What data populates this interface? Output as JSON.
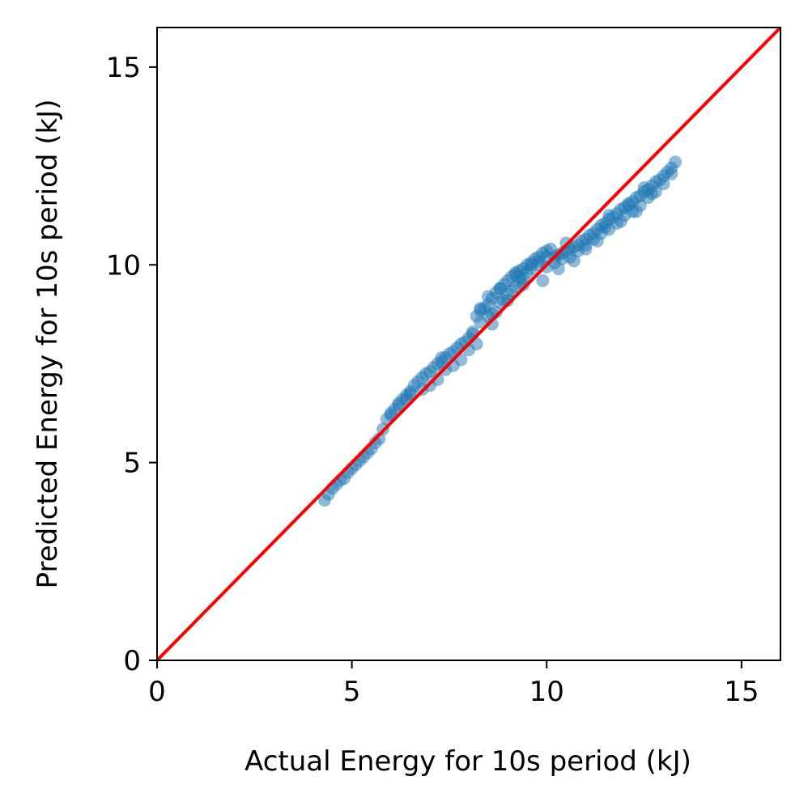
{
  "chart_data": {
    "type": "scatter",
    "title": "",
    "xlabel": "Actual Energy for 10s period (kJ)",
    "ylabel": "Predicted Energy for 10s period (kJ)",
    "xlim": [
      0,
      16
    ],
    "ylim": [
      0,
      16
    ],
    "xticks": [
      0,
      5,
      10,
      15
    ],
    "yticks": [
      0,
      5,
      10,
      15
    ],
    "xtick_labels": [
      "0",
      "5",
      "10",
      "15"
    ],
    "ytick_labels": [
      "0",
      "5",
      "10",
      "15"
    ],
    "grid": false,
    "colors": {
      "points": "#1f77b4",
      "reference_line": "#ff0000",
      "axes": "#000000"
    },
    "reference_line": {
      "name": "y = x",
      "x": [
        0,
        16
      ],
      "y": [
        0,
        16
      ]
    },
    "series": [
      {
        "name": "predictions",
        "x": [
          4.3,
          4.4,
          4.5,
          4.6,
          4.7,
          4.8,
          4.9,
          5.0,
          5.1,
          5.2,
          5.3,
          5.4,
          5.5,
          5.6,
          5.7,
          5.8,
          5.9,
          6.0,
          6.1,
          6.2,
          6.3,
          6.4,
          6.5,
          6.6,
          6.7,
          6.8,
          6.9,
          7.0,
          7.1,
          7.2,
          7.3,
          7.4,
          7.5,
          7.6,
          7.7,
          7.8,
          7.9,
          8.0,
          8.1,
          8.2,
          8.3,
          8.4,
          8.5,
          8.6,
          8.7,
          8.8,
          8.9,
          9.0,
          9.1,
          9.2,
          9.3,
          9.4,
          9.5,
          9.6,
          9.7,
          9.8,
          9.9,
          10.0,
          10.1,
          10.2,
          10.3,
          10.4,
          10.5,
          10.6,
          10.7,
          10.8,
          10.9,
          11.0,
          11.1,
          11.2,
          11.3,
          11.4,
          11.5,
          11.6,
          11.7,
          11.8,
          11.9,
          12.0,
          12.1,
          12.2,
          12.3,
          12.4,
          12.5,
          12.6,
          12.7,
          12.8,
          12.9,
          13.0,
          13.1,
          13.2,
          13.3,
          6.0,
          6.2,
          6.4,
          6.8,
          7.0,
          7.2,
          7.4,
          7.6,
          7.8,
          8.0,
          8.2,
          8.3,
          8.5,
          8.6,
          8.7,
          8.8,
          8.9,
          9.0,
          9.1,
          9.2,
          9.3,
          9.4,
          9.5,
          9.6,
          9.8,
          10.0,
          10.2,
          10.4,
          10.6,
          10.8,
          11.0,
          11.2,
          11.4,
          11.6,
          11.8,
          12.0,
          12.2,
          12.4,
          12.6,
          12.8,
          13.0,
          8.3,
          8.5,
          8.6,
          8.8,
          9.0,
          9.2,
          9.4,
          9.6,
          9.8,
          10.0,
          10.3,
          10.7,
          11.0,
          11.3,
          11.5,
          11.9,
          12.3,
          12.7,
          13.2,
          6.5,
          7.3,
          8.1,
          9.3,
          9.9,
          10.5,
          11.6,
          12.1,
          12.5
        ],
        "y": [
          4.05,
          4.2,
          4.35,
          4.45,
          4.55,
          4.6,
          4.75,
          4.85,
          4.95,
          5.05,
          5.15,
          5.25,
          5.35,
          5.5,
          5.6,
          5.85,
          6.1,
          6.2,
          6.35,
          6.5,
          6.6,
          6.7,
          6.8,
          6.95,
          7.05,
          7.15,
          7.25,
          7.3,
          7.4,
          7.5,
          7.55,
          7.65,
          7.75,
          7.8,
          7.9,
          8.0,
          8.05,
          8.15,
          8.25,
          8.7,
          8.85,
          8.9,
          9.0,
          9.15,
          9.3,
          9.4,
          9.5,
          9.6,
          9.7,
          9.75,
          9.85,
          9.9,
          10.0,
          10.05,
          10.15,
          10.2,
          10.3,
          10.35,
          10.4,
          10.2,
          10.25,
          10.3,
          10.35,
          10.4,
          10.45,
          10.5,
          10.6,
          10.65,
          10.75,
          10.8,
          10.9,
          11.0,
          11.05,
          11.15,
          11.2,
          11.3,
          11.4,
          11.45,
          11.55,
          11.6,
          11.7,
          11.75,
          11.85,
          11.9,
          12.0,
          12.1,
          12.15,
          12.25,
          12.35,
          12.45,
          12.6,
          6.25,
          6.45,
          6.6,
          6.85,
          6.95,
          7.1,
          7.35,
          7.45,
          7.6,
          7.85,
          8.0,
          8.55,
          8.7,
          8.75,
          8.8,
          9.05,
          9.1,
          9.25,
          9.35,
          9.45,
          9.6,
          9.65,
          9.8,
          9.9,
          10.0,
          10.2,
          10.05,
          10.15,
          10.2,
          10.35,
          10.5,
          10.65,
          10.8,
          10.9,
          11.05,
          11.25,
          11.35,
          11.5,
          11.7,
          11.85,
          12.05,
          8.9,
          9.2,
          8.5,
          9.4,
          9.1,
          9.8,
          9.5,
          10.0,
          10.1,
          9.95,
          9.9,
          10.1,
          10.4,
          10.6,
          10.95,
          11.1,
          11.35,
          11.8,
          12.3,
          6.75,
          7.65,
          8.3,
          9.7,
          9.6,
          10.55,
          11.25,
          11.5,
          11.95
        ]
      }
    ]
  }
}
